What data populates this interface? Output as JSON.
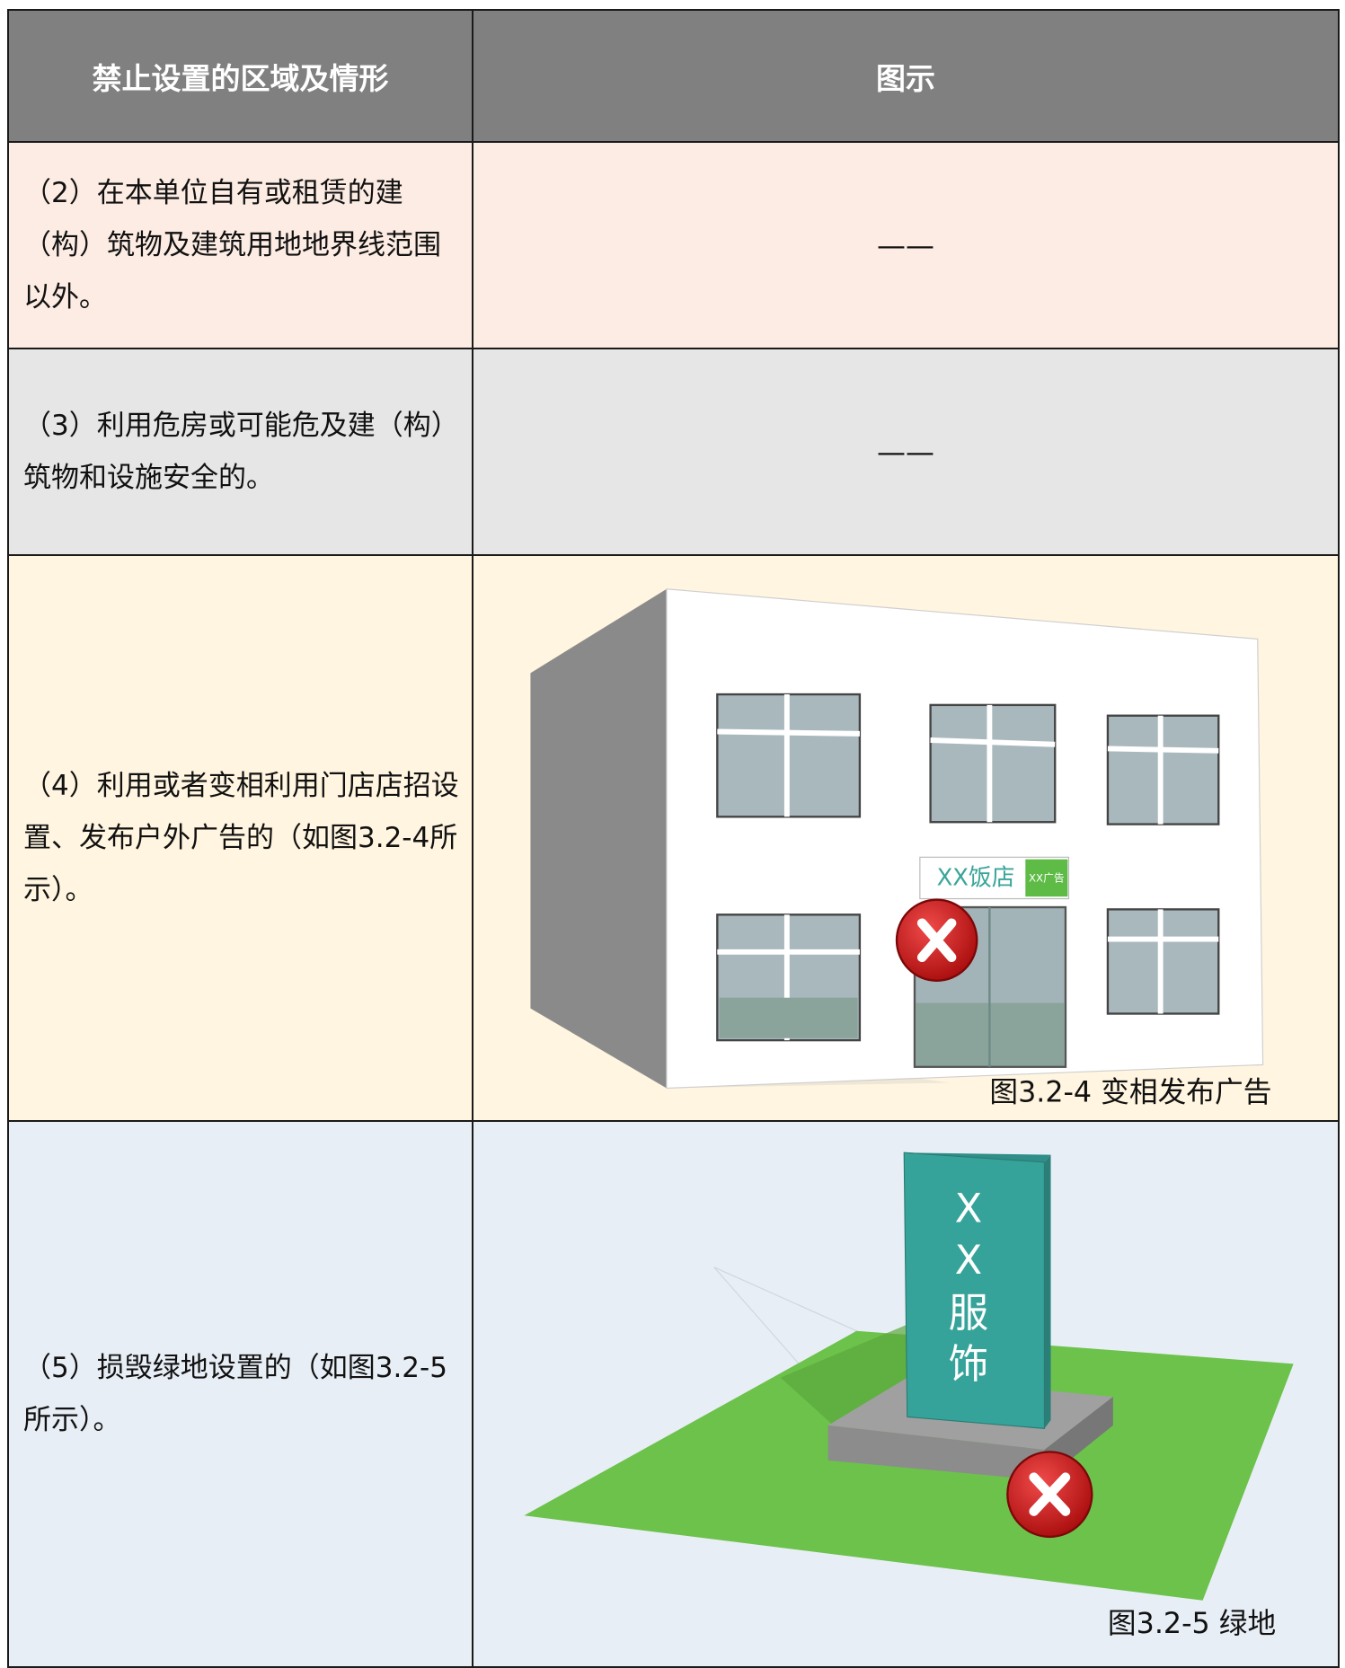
{
  "header": {
    "columns": [
      "禁止设置的区域及情形",
      "图示"
    ]
  },
  "rows": [
    {
      "situation": "（2）在本单位自有或租赁的建（构）筑物及建筑用地地界线范围以外。",
      "illustration": "——"
    },
    {
      "situation": "（3）利用危房或可能危及建（构）筑物和设施安全的。",
      "illustration": "——"
    },
    {
      "situation": "（4）利用或者变相利用门店店招设置、发布户外广告的（如图3.2-4所示）。",
      "figure": {
        "sign": "XX饭店",
        "sign_tag": "XX广告",
        "caption": "图3.2-4 变相发布广告"
      }
    },
    {
      "situation": "（5）损毁绿地设置的（如图3.2-5所示）。",
      "figure": {
        "sign_chars": [
          "X",
          "X",
          "服",
          "饰"
        ],
        "caption": "图3.2-5 绿地"
      }
    }
  ]
}
